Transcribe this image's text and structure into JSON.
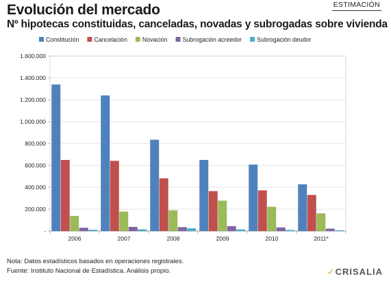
{
  "header": {
    "title": "Evolución del mercado",
    "subtitle": "Nº hipotecas constituidas, canceladas, novadas y subrogadas sobre vivienda",
    "badge": "ESTIMACIÓN"
  },
  "footer": {
    "note": "Nota: Datos estadísticos basados en operaciones registrales.",
    "source": "Fuente: Instituto Nacional de Estadística. Análisis propio.",
    "logo": "CRISALIA"
  },
  "chart_data": {
    "type": "bar",
    "title": "",
    "xlabel": "",
    "ylabel": "",
    "categories": [
      "2006",
      "2007",
      "2008",
      "2009",
      "2010",
      "2011*"
    ],
    "ylim": [
      0,
      1600000
    ],
    "yticks": [
      0,
      200000,
      400000,
      600000,
      800000,
      1000000,
      1200000,
      1400000,
      1600000
    ],
    "ytick_labels": [
      "-",
      "200.000",
      "400.000",
      "600.000",
      "800.000",
      "1.000.000",
      "1.200.000",
      "1.400.000",
      "1.600.000"
    ],
    "grid": true,
    "legend_position": "top",
    "series": [
      {
        "name": "Constitución",
        "color": "#4f81bd",
        "values": [
          1340000,
          1240000,
          835000,
          650000,
          608000,
          428000
        ]
      },
      {
        "name": "Cancelación",
        "color": "#c0504d",
        "values": [
          650000,
          642000,
          482000,
          365000,
          372000,
          330000
        ]
      },
      {
        "name": "Novación",
        "color": "#9bbb59",
        "values": [
          138000,
          178000,
          190000,
          278000,
          222000,
          162000
        ]
      },
      {
        "name": "Subrogación acreedor",
        "color": "#8064a2",
        "values": [
          30000,
          38000,
          36000,
          45000,
          33000,
          22000
        ]
      },
      {
        "name": "Subrogación deudor",
        "color": "#4bacc6",
        "values": [
          12000,
          16000,
          25000,
          15000,
          10000,
          7000
        ]
      }
    ]
  }
}
